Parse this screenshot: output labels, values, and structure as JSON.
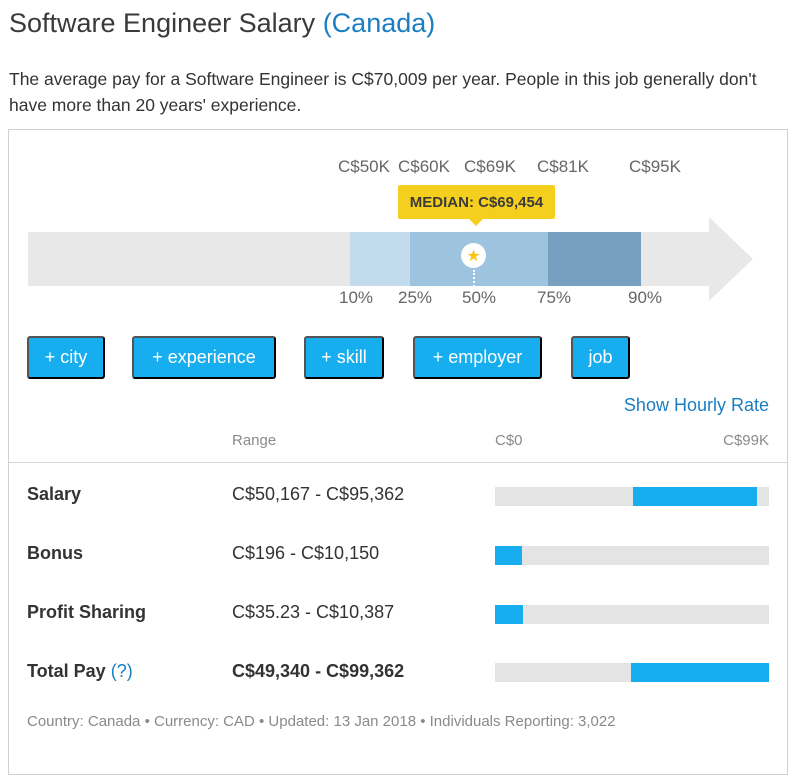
{
  "header": {
    "title": "Software Engineer Salary",
    "country": "(Canada)"
  },
  "summary": "The average pay for a Software Engineer is C$70,009 per year. People in this job generally don't have more than 20 years' experience.",
  "distribution": {
    "amounts": [
      "C$50K",
      "C$60K",
      "C$69K",
      "C$81K",
      "C$95K"
    ],
    "median_label": "MEDIAN: C$69,454",
    "percentiles": [
      "10%",
      "25%",
      "50%",
      "75%",
      "90%"
    ]
  },
  "filters": [
    "+ city",
    "+ experience",
    "+ skill",
    "+ employer",
    "job"
  ],
  "hourly_link": "Show Hourly Rate",
  "table": {
    "range_header": "Range",
    "scale_min": "C$0",
    "scale_max": "C$99K",
    "rows": [
      {
        "label": "Salary",
        "range": "C$50,167 - C$95,362",
        "min_frac": 0.503,
        "max_frac": 0.958
      },
      {
        "label": "Bonus",
        "range": "C$196 - C$10,150",
        "min_frac": 0.0,
        "max_frac": 0.099
      },
      {
        "label": "Profit Sharing",
        "range": "C$35.23 - C$10,387",
        "min_frac": 0.0,
        "max_frac": 0.102
      },
      {
        "label": "Total Pay",
        "help": "(?)",
        "range": "C$49,340 - C$99,362",
        "min_frac": 0.496,
        "max_frac": 1.0
      }
    ]
  },
  "footer": "Country: Canada • Currency: CAD • Updated: 13 Jan 2018 • Individuals Reporting: 3,022",
  "colors": {
    "accent": "#17aef0",
    "link": "#1b7ec2",
    "median": "#f5cf1d"
  }
}
